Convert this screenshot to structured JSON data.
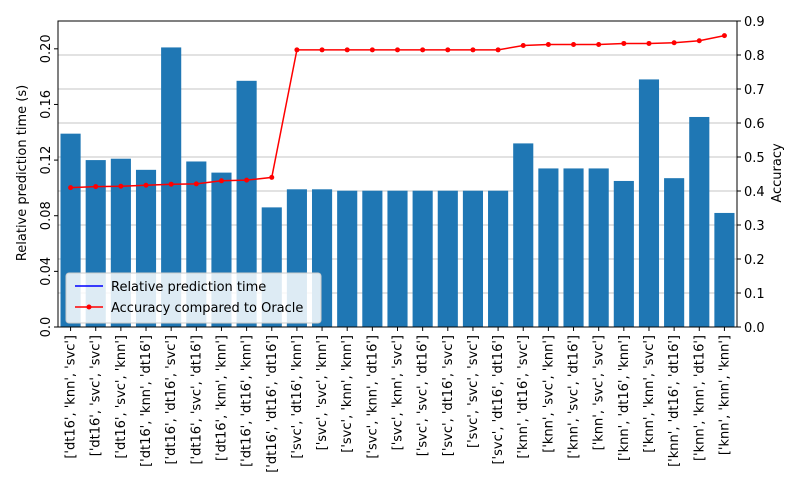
{
  "chart_data": {
    "type": "bar",
    "categories": [
      "['dt16', 'knn', 'svc']",
      "['dt16', 'svc', 'svc']",
      "['dt16', 'svc', 'knn']",
      "['dt16', 'knn', 'dt16']",
      "['dt16', 'dt16', 'svc']",
      "['dt16', 'svc', 'dt16']",
      "['dt16', 'knn', 'knn']",
      "['dt16', 'dt16', 'knn']",
      "['dt16', 'dt16', 'dt16']",
      "['svc', 'dt16', 'knn']",
      "['svc', 'svc', 'knn']",
      "['svc', 'knn', 'knn']",
      "['svc', 'knn', 'dt16']",
      "['svc', 'knn', 'svc']",
      "['svc', 'svc', 'dt16']",
      "['svc', 'dt16', 'svc']",
      "['svc', 'svc', 'svc']",
      "['svc', 'dt16', 'dt16']",
      "['knn', 'dt16', 'svc']",
      "['knn', 'svc', 'knn']",
      "['knn', 'svc', 'dt16']",
      "['knn', 'svc', 'svc']",
      "['knn', 'dt16', 'knn']",
      "['knn', 'knn', 'svc']",
      "['knn', 'dt16', 'dt16']",
      "['knn', 'knn', 'dt16']",
      "['knn', 'knn', 'knn']"
    ],
    "series": [
      {
        "name": "Relative prediction time",
        "axis": "left",
        "kind": "bar",
        "color": "#1f77b4",
        "values": [
          0.139,
          0.12,
          0.121,
          0.113,
          0.201,
          0.119,
          0.111,
          0.177,
          0.086,
          0.099,
          0.099,
          0.098,
          0.098,
          0.098,
          0.098,
          0.098,
          0.098,
          0.098,
          0.132,
          0.114,
          0.114,
          0.114,
          0.105,
          0.178,
          0.107,
          0.151,
          0.082
        ]
      },
      {
        "name": "Accuracy compared to Oracle",
        "axis": "right",
        "kind": "line",
        "color": "#ff0000",
        "values": [
          0.41,
          0.413,
          0.414,
          0.417,
          0.42,
          0.421,
          0.43,
          0.432,
          0.44,
          0.815,
          0.815,
          0.815,
          0.815,
          0.815,
          0.815,
          0.815,
          0.815,
          0.815,
          0.828,
          0.831,
          0.831,
          0.831,
          0.834,
          0.834,
          0.836,
          0.842,
          0.857
        ]
      }
    ],
    "left_axis": {
      "label": "Relative prediction time (s)",
      "ylim": [
        0,
        0.22
      ],
      "ticks": [
        0.0,
        0.04,
        0.08,
        0.12,
        0.16,
        0.2
      ],
      "tick_labels": [
        "0.0",
        "0.04",
        "0.08",
        "0.12",
        "0.16",
        "0.20"
      ]
    },
    "right_axis": {
      "label": "Accuracy",
      "ylim": [
        0,
        0.9
      ],
      "ticks": [
        0.0,
        0.1,
        0.2,
        0.3,
        0.4,
        0.5,
        0.6,
        0.7,
        0.8,
        0.9
      ],
      "tick_labels": [
        "0.0",
        "0.1",
        "0.2",
        "0.3",
        "0.4",
        "0.5",
        "0.6",
        "0.7",
        "0.8",
        "0.9"
      ],
      "grid": true
    },
    "legend": {
      "placement": "lower-left",
      "entries": [
        "Relative prediction time",
        "Accuracy compared to Oracle"
      ]
    },
    "bar_color": "#1f77b4",
    "line_color": "#ff0000",
    "legend_line_color": "#0000ff"
  }
}
